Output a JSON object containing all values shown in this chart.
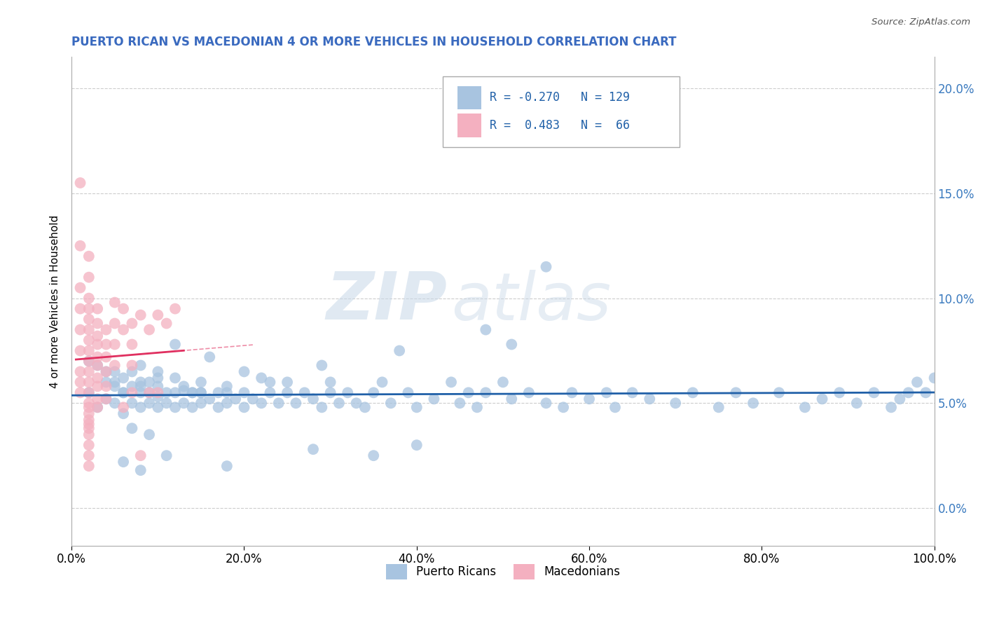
{
  "title": "PUERTO RICAN VS MACEDONIAN 4 OR MORE VEHICLES IN HOUSEHOLD CORRELATION CHART",
  "source": "Source: ZipAtlas.com",
  "xlabel_ticks": [
    "0.0%",
    "20.0%",
    "40.0%",
    "60.0%",
    "80.0%",
    "100.0%"
  ],
  "ylabel_ticks": [
    "0.0%",
    "5.0%",
    "10.0%",
    "15.0%",
    "20.0%"
  ],
  "ylabel_label": "4 or more Vehicles in Household",
  "xlim": [
    0.0,
    1.0
  ],
  "ylim": [
    -0.018,
    0.215
  ],
  "blue_R": -0.27,
  "blue_N": 129,
  "pink_R": 0.483,
  "pink_N": 66,
  "blue_color": "#a8c4e0",
  "pink_color": "#f4b0c0",
  "blue_line_color": "#2060a8",
  "pink_line_color": "#e03060",
  "legend_labels": [
    "Puerto Ricans",
    "Macedonians"
  ],
  "watermark_zip": "ZIP",
  "watermark_atlas": "atlas",
  "title_color": "#3a6abf",
  "blue_scatter_x": [
    0.02,
    0.03,
    0.04,
    0.04,
    0.05,
    0.05,
    0.05,
    0.06,
    0.06,
    0.06,
    0.07,
    0.07,
    0.07,
    0.08,
    0.08,
    0.08,
    0.08,
    0.09,
    0.09,
    0.09,
    0.1,
    0.1,
    0.1,
    0.1,
    0.11,
    0.11,
    0.12,
    0.12,
    0.12,
    0.13,
    0.13,
    0.14,
    0.14,
    0.15,
    0.15,
    0.15,
    0.16,
    0.17,
    0.17,
    0.18,
    0.18,
    0.19,
    0.2,
    0.2,
    0.21,
    0.22,
    0.23,
    0.23,
    0.24,
    0.25,
    0.25,
    0.26,
    0.27,
    0.28,
    0.29,
    0.3,
    0.3,
    0.31,
    0.32,
    0.33,
    0.34,
    0.35,
    0.36,
    0.37,
    0.39,
    0.4,
    0.42,
    0.44,
    0.45,
    0.46,
    0.47,
    0.48,
    0.5,
    0.51,
    0.53,
    0.55,
    0.57,
    0.58,
    0.6,
    0.62,
    0.63,
    0.65,
    0.67,
    0.7,
    0.72,
    0.75,
    0.77,
    0.79,
    0.82,
    0.85,
    0.87,
    0.89,
    0.91,
    0.93,
    0.95,
    0.96,
    0.97,
    0.98,
    0.99,
    1.0,
    0.55,
    0.48,
    0.51,
    0.38,
    0.29,
    0.22,
    0.18,
    0.15,
    0.13,
    0.1,
    0.08,
    0.06,
    0.05,
    0.04,
    0.03,
    0.02,
    0.12,
    0.16,
    0.2,
    0.14,
    0.11,
    0.08,
    0.06,
    0.4,
    0.35,
    0.28,
    0.18,
    0.09,
    0.07
  ],
  "blue_scatter_y": [
    0.055,
    0.048,
    0.052,
    0.06,
    0.05,
    0.058,
    0.065,
    0.045,
    0.055,
    0.062,
    0.05,
    0.058,
    0.065,
    0.048,
    0.055,
    0.06,
    0.068,
    0.05,
    0.055,
    0.06,
    0.048,
    0.053,
    0.058,
    0.065,
    0.05,
    0.055,
    0.048,
    0.055,
    0.062,
    0.05,
    0.056,
    0.048,
    0.055,
    0.05,
    0.055,
    0.06,
    0.052,
    0.048,
    0.055,
    0.05,
    0.055,
    0.052,
    0.048,
    0.055,
    0.052,
    0.05,
    0.055,
    0.06,
    0.05,
    0.055,
    0.06,
    0.05,
    0.055,
    0.052,
    0.048,
    0.055,
    0.06,
    0.05,
    0.055,
    0.05,
    0.048,
    0.055,
    0.06,
    0.05,
    0.055,
    0.048,
    0.052,
    0.06,
    0.05,
    0.055,
    0.048,
    0.055,
    0.06,
    0.052,
    0.055,
    0.05,
    0.048,
    0.055,
    0.052,
    0.055,
    0.048,
    0.055,
    0.052,
    0.05,
    0.055,
    0.048,
    0.055,
    0.05,
    0.055,
    0.048,
    0.052,
    0.055,
    0.05,
    0.055,
    0.048,
    0.052,
    0.055,
    0.06,
    0.055,
    0.062,
    0.115,
    0.085,
    0.078,
    0.075,
    0.068,
    0.062,
    0.058,
    0.055,
    0.058,
    0.062,
    0.058,
    0.055,
    0.06,
    0.065,
    0.068,
    0.07,
    0.078,
    0.072,
    0.065,
    0.055,
    0.025,
    0.018,
    0.022,
    0.03,
    0.025,
    0.028,
    0.02,
    0.035,
    0.038
  ],
  "pink_scatter_x": [
    0.01,
    0.01,
    0.01,
    0.01,
    0.01,
    0.01,
    0.01,
    0.01,
    0.01,
    0.02,
    0.02,
    0.02,
    0.02,
    0.02,
    0.02,
    0.02,
    0.02,
    0.02,
    0.02,
    0.02,
    0.02,
    0.02,
    0.02,
    0.02,
    0.02,
    0.02,
    0.02,
    0.02,
    0.02,
    0.02,
    0.02,
    0.03,
    0.03,
    0.03,
    0.03,
    0.03,
    0.03,
    0.03,
    0.03,
    0.03,
    0.03,
    0.04,
    0.04,
    0.04,
    0.04,
    0.04,
    0.04,
    0.05,
    0.05,
    0.05,
    0.05,
    0.06,
    0.06,
    0.06,
    0.07,
    0.07,
    0.07,
    0.07,
    0.08,
    0.08,
    0.09,
    0.09,
    0.1,
    0.1,
    0.11,
    0.12
  ],
  "pink_scatter_y": [
    0.155,
    0.125,
    0.105,
    0.095,
    0.085,
    0.075,
    0.065,
    0.06,
    0.055,
    0.12,
    0.11,
    0.1,
    0.095,
    0.09,
    0.085,
    0.08,
    0.075,
    0.07,
    0.065,
    0.06,
    0.055,
    0.05,
    0.048,
    0.045,
    0.042,
    0.04,
    0.038,
    0.035,
    0.03,
    0.025,
    0.02,
    0.095,
    0.088,
    0.082,
    0.078,
    0.072,
    0.068,
    0.062,
    0.058,
    0.052,
    0.048,
    0.085,
    0.078,
    0.072,
    0.065,
    0.058,
    0.052,
    0.098,
    0.088,
    0.078,
    0.068,
    0.095,
    0.085,
    0.048,
    0.088,
    0.078,
    0.068,
    0.055,
    0.092,
    0.025,
    0.085,
    0.055,
    0.092,
    0.055,
    0.088,
    0.095
  ]
}
